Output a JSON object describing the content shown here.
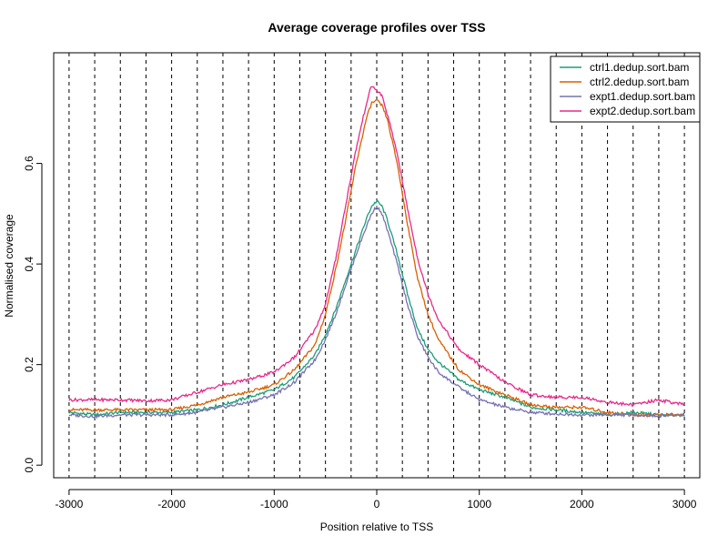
{
  "chart_data": {
    "type": "line",
    "title": "Average coverage profiles over TSS",
    "xlabel": "Position relative to TSS",
    "ylabel": "Normalised coverage",
    "xlim": [
      -3150,
      3150
    ],
    "ylim": [
      -0.025,
      0.82
    ],
    "x_ticks": [
      -3000,
      -2000,
      -1000,
      0,
      1000,
      2000,
      3000
    ],
    "x_tick_labels": [
      "-3000",
      "-2000",
      "-1000",
      "0",
      "1000",
      "2000",
      "3000"
    ],
    "y_ticks": [
      0.0,
      0.2,
      0.4,
      0.6
    ],
    "y_tick_labels": [
      "0.0",
      "0.2",
      "0.4",
      "0.6"
    ],
    "vlines": [
      -3000,
      -2750,
      -2500,
      -2250,
      -2000,
      -1750,
      -1500,
      -1250,
      -1000,
      -750,
      -500,
      -250,
      0,
      250,
      500,
      750,
      1000,
      1250,
      1500,
      1750,
      2000,
      2250,
      2500,
      2750,
      3000
    ],
    "legend_position": "top-right",
    "x": [
      -3000,
      -2750,
      -2500,
      -2250,
      -2000,
      -1750,
      -1500,
      -1250,
      -1000,
      -800,
      -600,
      -500,
      -400,
      -300,
      -200,
      -100,
      -50,
      0,
      50,
      100,
      200,
      300,
      400,
      500,
      600,
      800,
      1000,
      1250,
      1500,
      1750,
      2000,
      2250,
      2500,
      2750,
      3000
    ],
    "series": [
      {
        "name": "ctrl1.dedup.sort.bam",
        "color": "#1b9e77",
        "values": [
          0.105,
          0.1,
          0.105,
          0.105,
          0.105,
          0.11,
          0.12,
          0.135,
          0.15,
          0.175,
          0.22,
          0.26,
          0.31,
          0.37,
          0.43,
          0.49,
          0.515,
          0.525,
          0.515,
          0.49,
          0.42,
          0.34,
          0.27,
          0.23,
          0.205,
          0.17,
          0.15,
          0.135,
          0.115,
          0.11,
          0.105,
          0.1,
          0.105,
          0.1,
          0.1
        ]
      },
      {
        "name": "ctrl2.dedup.sort.bam",
        "color": "#d95f02",
        "values": [
          0.11,
          0.11,
          0.11,
          0.11,
          0.11,
          0.12,
          0.135,
          0.145,
          0.16,
          0.19,
          0.24,
          0.3,
          0.39,
          0.49,
          0.6,
          0.69,
          0.72,
          0.725,
          0.715,
          0.69,
          0.6,
          0.48,
          0.37,
          0.3,
          0.25,
          0.19,
          0.16,
          0.14,
          0.12,
          0.115,
          0.115,
          0.105,
          0.1,
          0.1,
          0.1
        ]
      },
      {
        "name": "expt1.dedup.sort.bam",
        "color": "#7570b3",
        "values": [
          0.1,
          0.097,
          0.1,
          0.1,
          0.1,
          0.105,
          0.115,
          0.125,
          0.14,
          0.165,
          0.21,
          0.25,
          0.3,
          0.36,
          0.42,
          0.475,
          0.5,
          0.515,
          0.5,
          0.47,
          0.4,
          0.32,
          0.255,
          0.215,
          0.185,
          0.155,
          0.13,
          0.115,
          0.105,
          0.102,
          0.1,
          0.1,
          0.1,
          0.098,
          0.1
        ]
      },
      {
        "name": "expt2.dedup.sort.bam",
        "color": "#e7298a",
        "values": [
          0.13,
          0.13,
          0.13,
          0.128,
          0.13,
          0.145,
          0.16,
          0.17,
          0.185,
          0.215,
          0.27,
          0.32,
          0.41,
          0.52,
          0.63,
          0.72,
          0.755,
          0.745,
          0.735,
          0.7,
          0.62,
          0.51,
          0.41,
          0.34,
          0.29,
          0.23,
          0.2,
          0.165,
          0.14,
          0.135,
          0.135,
          0.125,
          0.12,
          0.13,
          0.12
        ]
      }
    ]
  }
}
